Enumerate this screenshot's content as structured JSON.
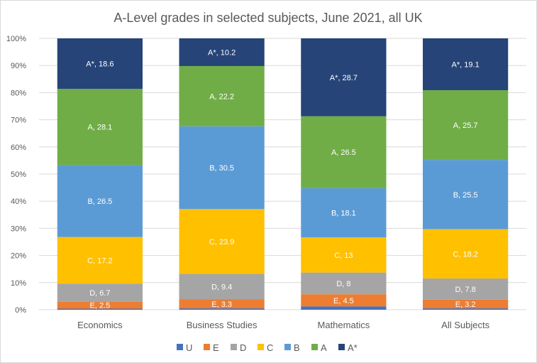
{
  "chart_data": {
    "type": "bar",
    "stacked": true,
    "percent_stacked": true,
    "title": "A-Level grades in selected subjects,  June 2021, all UK",
    "xlabel": "",
    "ylabel": "",
    "ylim": [
      0,
      100
    ],
    "yticks": [
      "0%",
      "10%",
      "20%",
      "30%",
      "40%",
      "50%",
      "60%",
      "70%",
      "80%",
      "90%",
      "100%"
    ],
    "grid": true,
    "legend_position": "bottom",
    "categories": [
      "Economics",
      "Business Studies",
      "Mathematics",
      "All Subjects"
    ],
    "series": [
      {
        "name": "U",
        "color": "#4472c4",
        "values": [
          0.4,
          0.5,
          1.2,
          0.5
        ],
        "show_labels": false
      },
      {
        "name": "E",
        "color": "#ed7d31",
        "values": [
          2.5,
          3.3,
          4.5,
          3.2
        ],
        "show_labels": true
      },
      {
        "name": "D",
        "color": "#a5a5a5",
        "values": [
          6.7,
          9.4,
          8,
          7.8
        ],
        "show_labels": true
      },
      {
        "name": "C",
        "color": "#ffc000",
        "values": [
          17.2,
          23.9,
          13,
          18.2
        ],
        "show_labels": true
      },
      {
        "name": "B",
        "color": "#5b9bd5",
        "values": [
          26.5,
          30.5,
          18.1,
          25.5
        ],
        "show_labels": true
      },
      {
        "name": "A",
        "color": "#70ad47",
        "values": [
          28.1,
          22.2,
          26.5,
          25.7
        ],
        "show_labels": true
      },
      {
        "name": "A*",
        "color": "#264478",
        "values": [
          18.6,
          10.2,
          28.7,
          19.1
        ],
        "show_labels": true
      }
    ]
  }
}
